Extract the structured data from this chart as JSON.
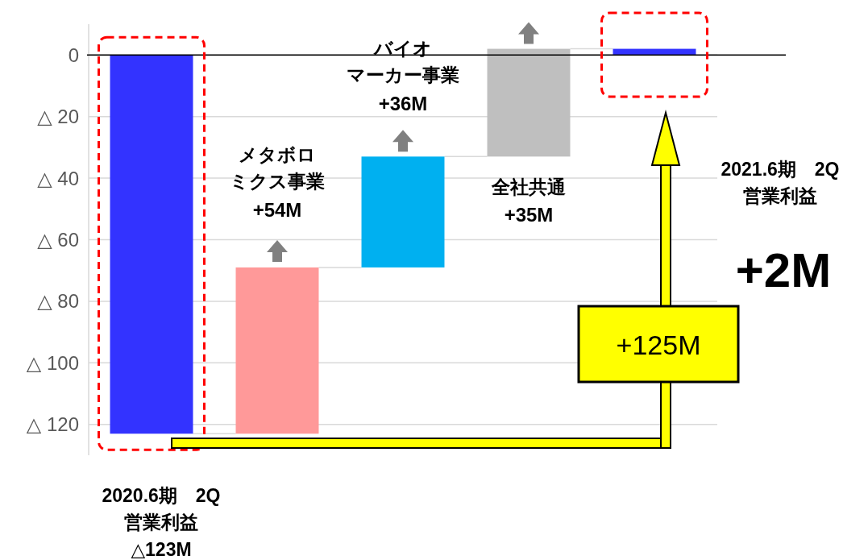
{
  "chart_data": {
    "type": "bar",
    "categories": [
      null,
      null,
      null,
      null,
      null
    ],
    "values": [
      -123,
      54,
      36,
      35,
      2
    ],
    "base": [
      0,
      -123,
      -69,
      -33,
      0
    ],
    "colors": [
      "#3333ff",
      "#ff9999",
      "#00b0f0",
      "#bfbfbf",
      "#3333ff"
    ],
    "value_labels": [
      null,
      "+54M",
      "+36M",
      "+35M",
      null
    ],
    "ylim": [
      -130,
      10
    ],
    "yticks": [
      {
        "value": 0,
        "label": "0"
      },
      {
        "value": -20,
        "label": "△ 20"
      },
      {
        "value": -40,
        "label": "△ 40"
      },
      {
        "value": -60,
        "label": "△ 60"
      },
      {
        "value": -80,
        "label": "△ 80"
      },
      {
        "value": -100,
        "label": "△ 100"
      },
      {
        "value": -120,
        "label": "△ 120"
      }
    ],
    "grid": "y",
    "ref_lines": [
      {
        "axis": "y",
        "value": 0,
        "color": "#000000"
      }
    ],
    "annotations": [
      "2020.6期　2Q営業利益△123M",
      "メタボロミクス事業",
      "バイオマーカー事業",
      "全社共通",
      "2021.6期　2Q営業利益",
      "+2M",
      "+125M"
    ]
  }
}
